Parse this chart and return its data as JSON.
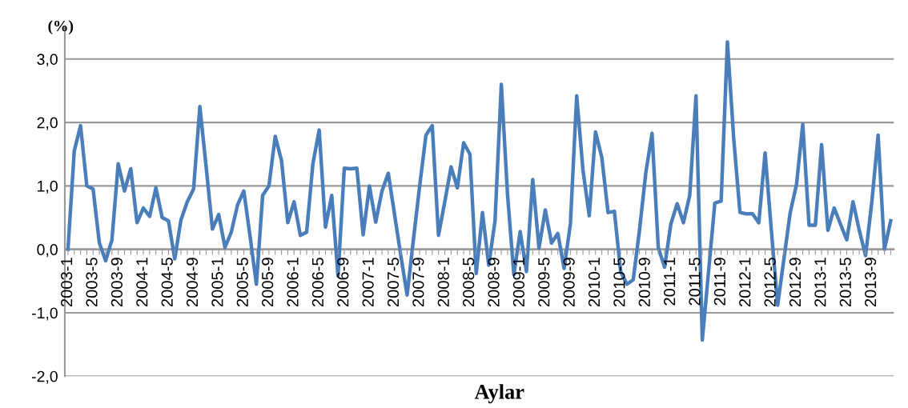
{
  "chart_data": {
    "type": "line",
    "ylabel": "(%)",
    "xlabel": "Aylar",
    "categories": [
      "2003-1",
      null,
      null,
      null,
      "2003-5",
      null,
      null,
      null,
      "2003-9",
      null,
      null,
      null,
      "2004-1",
      null,
      null,
      null,
      "2004-5",
      null,
      null,
      null,
      "2004-9",
      null,
      null,
      null,
      "2005-1",
      null,
      null,
      null,
      "2005-5",
      null,
      null,
      null,
      "2005-9",
      null,
      null,
      null,
      "2006-1",
      null,
      null,
      null,
      "2006-5",
      null,
      null,
      null,
      "2006-9",
      null,
      null,
      null,
      "2007-1",
      null,
      null,
      null,
      "2007-5",
      null,
      null,
      null,
      "2007-9",
      null,
      null,
      null,
      "2008-1",
      null,
      null,
      null,
      "2008-5",
      null,
      null,
      null,
      "2008-9",
      null,
      null,
      null,
      "2009-1",
      null,
      null,
      null,
      "2009-5",
      null,
      null,
      null,
      "2009-9",
      null,
      null,
      null,
      "2010-1",
      null,
      null,
      null,
      "2010-5",
      null,
      null,
      null,
      "2010-9",
      null,
      null,
      null,
      "2011-1",
      null,
      null,
      null,
      "2011-5",
      null,
      null,
      null,
      "2011-9",
      null,
      null,
      null,
      "2012-1",
      null,
      null,
      null,
      "2012-5",
      null,
      null,
      null,
      "2012-9",
      null,
      null,
      null,
      "2013-1",
      null,
      null,
      null,
      "2013-5",
      null,
      null,
      null,
      "2013-9",
      null,
      null,
      null
    ],
    "series": [
      {
        "color": "#4a7ebb",
        "values": [
          0.0,
          1.55,
          1.95,
          1.0,
          0.95,
          0.1,
          -0.18,
          0.15,
          1.35,
          0.92,
          1.27,
          0.42,
          0.65,
          0.52,
          0.97,
          0.5,
          0.45,
          -0.15,
          0.47,
          0.75,
          0.95,
          2.25,
          1.3,
          0.32,
          0.55,
          0.03,
          0.27,
          0.7,
          0.92,
          0.2,
          -0.55,
          0.85,
          1.0,
          1.78,
          1.4,
          0.42,
          0.75,
          0.22,
          0.27,
          1.35,
          1.88,
          0.35,
          0.85,
          -0.42,
          1.28,
          1.27,
          1.28,
          0.23,
          1.0,
          0.43,
          0.92,
          1.2,
          0.55,
          -0.1,
          -0.72,
          0.15,
          1.0,
          1.8,
          1.95,
          0.22,
          0.75,
          1.3,
          0.97,
          1.68,
          1.5,
          -0.38,
          0.58,
          -0.25,
          0.45,
          2.6,
          0.85,
          -0.4,
          0.28,
          -0.35,
          1.1,
          0.02,
          0.62,
          0.1,
          0.25,
          -0.3,
          0.4,
          2.42,
          1.25,
          0.53,
          1.85,
          1.45,
          0.58,
          0.6,
          -0.35,
          -0.55,
          -0.48,
          0.3,
          1.2,
          1.83,
          0.02,
          -0.28,
          0.4,
          0.72,
          0.42,
          0.85,
          2.42,
          -1.43,
          -0.35,
          0.73,
          0.76,
          3.27,
          1.75,
          0.58,
          0.56,
          0.56,
          0.42,
          1.52,
          0.3,
          -0.88,
          -0.15,
          0.58,
          1.02,
          1.97,
          0.38,
          0.38,
          1.65,
          0.3,
          0.65,
          0.4,
          0.15,
          0.75,
          0.3,
          -0.1,
          0.75,
          1.8,
          0.0,
          0.45
        ]
      }
    ],
    "ylim": [
      -2,
      3.5
    ],
    "yticks": [
      {
        "value": -2,
        "label": "-2,0"
      },
      {
        "value": -1,
        "label": "-1,0"
      },
      {
        "value": 0,
        "label": "0,0"
      },
      {
        "value": 1,
        "label": "1,0"
      },
      {
        "value": 2,
        "label": "2,0"
      },
      {
        "value": 3,
        "label": "3,0"
      }
    ],
    "grid": "y",
    "marker": "none",
    "line_style": "solid"
  }
}
